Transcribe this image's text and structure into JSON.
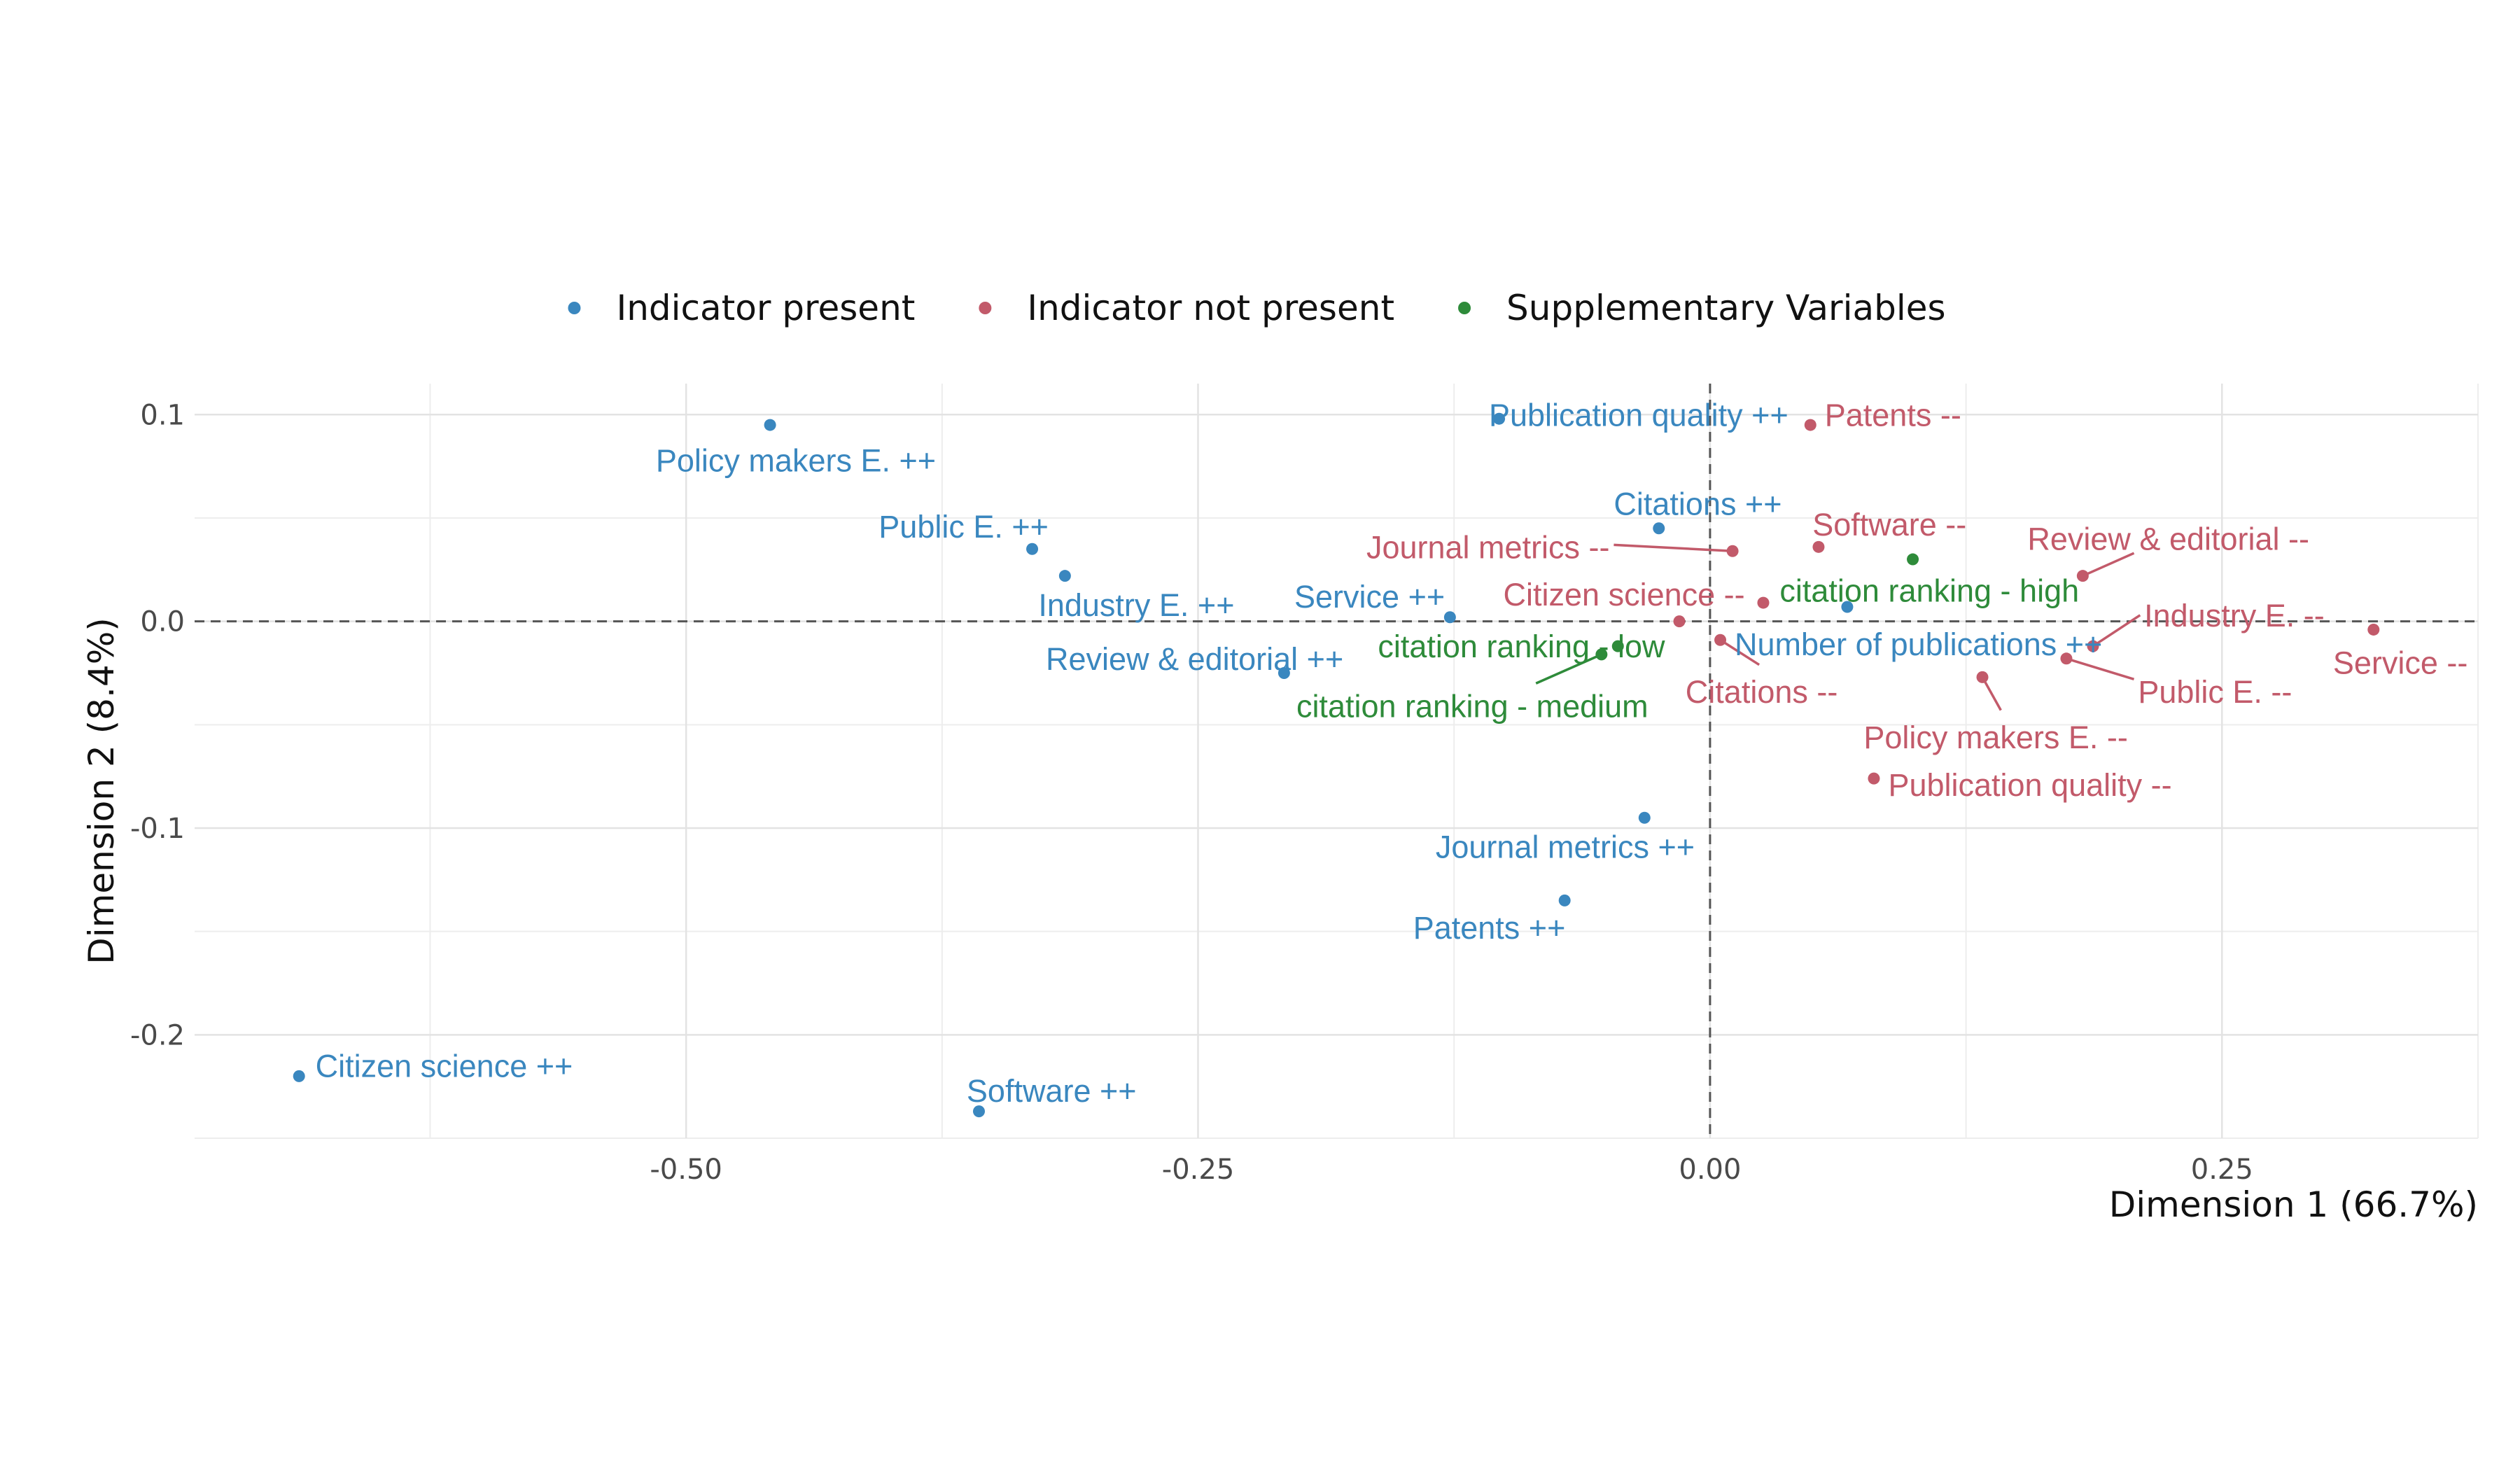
{
  "chart_data": {
    "type": "scatter",
    "xlabel": "Dimension 1 (66.7%)",
    "ylabel": "Dimension 2 (8.4%)",
    "xlim": [
      -0.74,
      0.375
    ],
    "ylim": [
      -0.25,
      0.115
    ],
    "x_ticks": [
      -0.5,
      -0.25,
      0.0,
      0.25
    ],
    "x_tick_labels": [
      "-0.50",
      "-0.25",
      "0.00",
      "0.25"
    ],
    "y_ticks": [
      -0.2,
      -0.1,
      0.0,
      0.1
    ],
    "y_tick_labels": [
      "-0.2",
      "-0.1",
      "0.0",
      "0.1"
    ],
    "grid": true,
    "reference_lines": {
      "x": 0,
      "y": 0,
      "style": "dashed"
    },
    "legend": {
      "position": "top",
      "entries": [
        {
          "name": "Indicator present",
          "color": "#3A87BF"
        },
        {
          "name": "Indicator not present",
          "color": "#C25A6A"
        },
        {
          "name": "Supplementary Variables",
          "color": "#2E8B3A"
        }
      ]
    },
    "series": [
      {
        "name": "Indicator present",
        "color": "#3A87BF",
        "points": [
          {
            "label": "Policy makers E. ++",
            "x": -0.459,
            "y": 0.095,
            "lx": -0.378,
            "ly": 0.078,
            "anchor": "end"
          },
          {
            "label": "Publication quality ++",
            "x": -0.103,
            "y": 0.098,
            "lx": -0.108,
            "ly": 0.1,
            "anchor": "start"
          },
          {
            "label": "Public E. ++",
            "x": -0.331,
            "y": 0.035,
            "lx": -0.323,
            "ly": 0.046,
            "anchor": "end"
          },
          {
            "label": "Industry E. ++",
            "x": -0.315,
            "y": 0.022,
            "lx": -0.328,
            "ly": 0.008,
            "anchor": "start"
          },
          {
            "label": "Citations ++",
            "x": -0.025,
            "y": 0.045,
            "lx": -0.047,
            "ly": 0.057,
            "anchor": "start"
          },
          {
            "label": "Service ++",
            "x": -0.127,
            "y": 0.002,
            "lx": -0.203,
            "ly": 0.012,
            "anchor": "start"
          },
          {
            "label": "Number of publications ++",
            "x": 0.067,
            "y": 0.007,
            "lx": 0.012,
            "ly": -0.011,
            "anchor": "start"
          },
          {
            "label": "Review & editorial ++",
            "x": -0.208,
            "y": -0.025,
            "lx": -0.179,
            "ly": -0.018,
            "anchor": "end"
          },
          {
            "label": "Journal metrics ++",
            "x": -0.032,
            "y": -0.095,
            "lx": -0.134,
            "ly": -0.109,
            "anchor": "start"
          },
          {
            "label": "Patents ++",
            "x": -0.071,
            "y": -0.135,
            "lx": -0.145,
            "ly": -0.148,
            "anchor": "start"
          },
          {
            "label": "Citizen science ++",
            "x": -0.689,
            "y": -0.22,
            "lx": -0.681,
            "ly": -0.215,
            "anchor": "start"
          },
          {
            "label": "Software ++",
            "x": -0.357,
            "y": -0.237,
            "lx": -0.363,
            "ly": -0.227,
            "anchor": "start"
          }
        ]
      },
      {
        "name": "Indicator not present",
        "color": "#C25A6A",
        "points": [
          {
            "label": "Patents --",
            "x": 0.049,
            "y": 0.095,
            "lx": 0.056,
            "ly": 0.1,
            "anchor": "start"
          },
          {
            "label": "Software --",
            "x": 0.053,
            "y": 0.036,
            "lx": 0.05,
            "ly": 0.047,
            "anchor": "start"
          },
          {
            "label": "Journal metrics --",
            "x": 0.011,
            "y": 0.034,
            "lx": -0.049,
            "ly": 0.036,
            "anchor": "end",
            "leader": [
              -0.047,
              0.037
            ]
          },
          {
            "label": "Review & editorial --",
            "x": 0.182,
            "y": 0.022,
            "lx": 0.155,
            "ly": 0.04,
            "anchor": "start",
            "leader": [
              0.207,
              0.033
            ]
          },
          {
            "label": "Citizen science --",
            "x": 0.026,
            "y": 0.009,
            "lx": 0.017,
            "ly": 0.013,
            "anchor": "end"
          },
          {
            "label": "Industry E. --",
            "x": 0.187,
            "y": -0.012,
            "lx": 0.212,
            "ly": 0.003,
            "anchor": "start",
            "leader": [
              0.21,
              0.003
            ]
          },
          {
            "label": "Service --",
            "x": 0.324,
            "y": -0.004,
            "lx": 0.37,
            "ly": -0.02,
            "anchor": "end"
          },
          {
            "label": "Citations --",
            "x": 0.005,
            "y": -0.009,
            "lx": -0.012,
            "ly": -0.034,
            "anchor": "start",
            "leader": [
              0.024,
              -0.021
            ]
          },
          {
            "label": "Public E. --",
            "x": 0.174,
            "y": -0.018,
            "lx": 0.209,
            "ly": -0.034,
            "anchor": "start",
            "leader": [
              0.207,
              -0.028
            ]
          },
          {
            "label": "Policy makers E. --",
            "x": 0.133,
            "y": -0.027,
            "lx": 0.075,
            "ly": -0.056,
            "anchor": "start",
            "leader": [
              0.142,
              -0.043
            ]
          },
          {
            "label": "Publication quality --",
            "x": 0.08,
            "y": -0.076,
            "lx": 0.087,
            "ly": -0.079,
            "anchor": "start"
          },
          {
            "label": "Citizen science -- ",
            "x": -0.015,
            "y": 0.0,
            "hide_label": true
          }
        ]
      },
      {
        "name": "Supplementary Variables",
        "color": "#2E8B3A",
        "points": [
          {
            "label": "citation ranking - high",
            "x": 0.099,
            "y": 0.03,
            "lx": 0.034,
            "ly": 0.015,
            "anchor": "start"
          },
          {
            "label": "citation ranking - low",
            "x": -0.045,
            "y": -0.012,
            "lx": -0.022,
            "ly": -0.012,
            "anchor": "end"
          },
          {
            "label": "citation ranking - medium",
            "x": -0.053,
            "y": -0.016,
            "lx": -0.202,
            "ly": -0.041,
            "anchor": "start",
            "leader": [
              -0.085,
              -0.03
            ]
          }
        ]
      }
    ]
  }
}
